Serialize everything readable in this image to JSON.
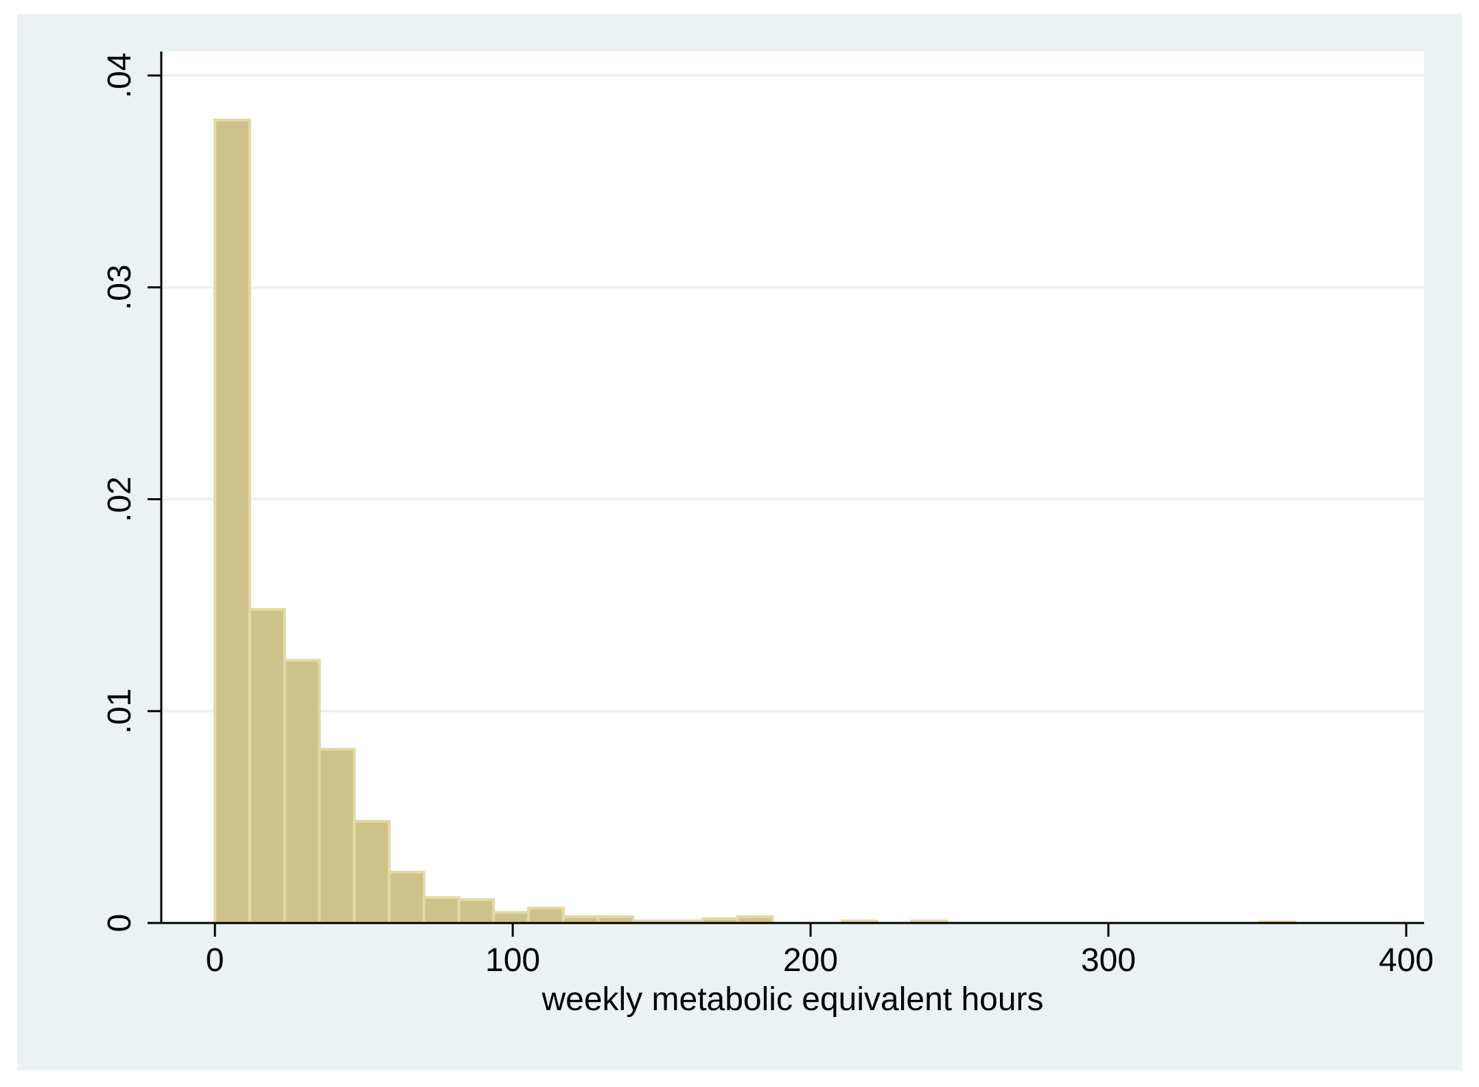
{
  "chart_data": {
    "type": "bar",
    "subtype": "histogram",
    "xlabel": "weekly metabolic equivalent hours",
    "ylabel": "",
    "xlim": [
      -18,
      406
    ],
    "ylim": [
      0,
      0.04
    ],
    "xticks": [
      {
        "value": 0,
        "label": "0"
      },
      {
        "value": 100,
        "label": "100"
      },
      {
        "value": 200,
        "label": "200"
      },
      {
        "value": 300,
        "label": "300"
      },
      {
        "value": 400,
        "label": "400"
      }
    ],
    "yticks": [
      {
        "value": 0,
        "label": "0"
      },
      {
        "value": 0.01,
        "label": ".01"
      },
      {
        "value": 0.02,
        "label": ".02"
      },
      {
        "value": 0.03,
        "label": ".03"
      },
      {
        "value": 0.04,
        "label": ".04"
      }
    ],
    "grid": "horizontal",
    "bin_width": 11.7,
    "bins": [
      {
        "start": 0.0,
        "density": 0.0379
      },
      {
        "start": 11.7,
        "density": 0.0148
      },
      {
        "start": 23.4,
        "density": 0.0124
      },
      {
        "start": 35.1,
        "density": 0.0082
      },
      {
        "start": 46.8,
        "density": 0.0048
      },
      {
        "start": 58.5,
        "density": 0.0024
      },
      {
        "start": 70.2,
        "density": 0.0012
      },
      {
        "start": 81.9,
        "density": 0.0011
      },
      {
        "start": 93.6,
        "density": 0.0005
      },
      {
        "start": 105.3,
        "density": 0.0007
      },
      {
        "start": 117.0,
        "density": 0.0003
      },
      {
        "start": 128.7,
        "density": 0.0003
      },
      {
        "start": 140.4,
        "density": 0.0001
      },
      {
        "start": 152.1,
        "density": 0.0001
      },
      {
        "start": 163.8,
        "density": 0.0002
      },
      {
        "start": 175.5,
        "density": 0.0003
      },
      {
        "start": 210.6,
        "density": 0.0001
      },
      {
        "start": 234.0,
        "density": 0.0001
      },
      {
        "start": 351.0,
        "density": 5e-05
      }
    ],
    "colors": {
      "outer_background": "#eaf2f3",
      "plot_background": "#ffffff",
      "bar_fill": "#cdc28a",
      "bar_outline": "#e2d9a5",
      "grid": "#eaf2f3",
      "axis": "#000000"
    }
  }
}
